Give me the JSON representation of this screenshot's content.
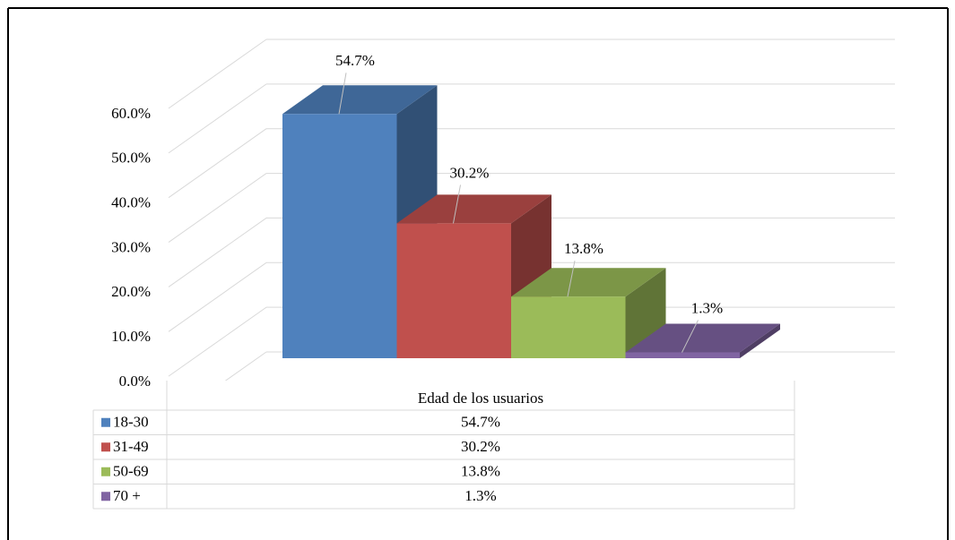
{
  "chart_data": {
    "type": "bar",
    "categories": [
      "Edad de los usuarios"
    ],
    "series": [
      {
        "name": "18-30",
        "color": "#4f81bd",
        "values": [
          54.7
        ],
        "value_labels": [
          "54.7%"
        ]
      },
      {
        "name": "31-49",
        "color": "#c0504d",
        "values": [
          30.2
        ],
        "value_labels": [
          "30.2%"
        ]
      },
      {
        "name": "50-69",
        "color": "#9bbb59",
        "values": [
          13.8
        ],
        "value_labels": [
          "13.8%"
        ]
      },
      {
        "name": "70 +",
        "color": "#8064a2",
        "values": [
          1.3
        ],
        "value_labels": [
          "1.3%"
        ]
      }
    ],
    "ylim": [
      0,
      70
    ],
    "yticks": [
      {
        "value": 0,
        "label": "0.0%"
      },
      {
        "value": 10,
        "label": "10.0%"
      },
      {
        "value": 20,
        "label": "20.0%"
      },
      {
        "value": 30,
        "label": "30.0%"
      },
      {
        "value": 40,
        "label": "40.0%"
      },
      {
        "value": 50,
        "label": "50.0%"
      },
      {
        "value": 60,
        "label": "60.0%"
      }
    ],
    "grid": true,
    "legend": "table"
  }
}
